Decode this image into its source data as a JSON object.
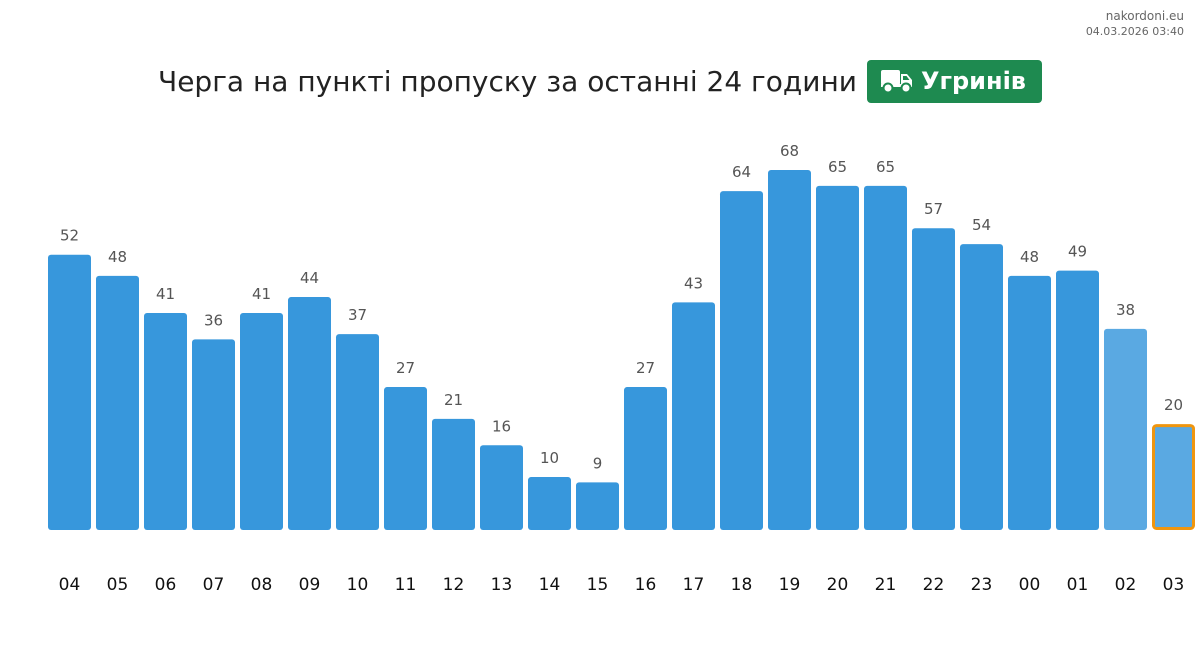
{
  "source": {
    "site": "nakordoni.eu",
    "timestamp": "04.03.2026 03:40"
  },
  "header": {
    "title": "Черга на пункті пропуску за останні 24 години",
    "checkpoint": "Угринів",
    "checkpoint_icon": "truck-icon"
  },
  "colors": {
    "bar": "#3797dc",
    "bar_recent": "#5aa9e2",
    "highlight_border": "#f0960f",
    "badge": "#1e8a50",
    "value_label": "#555555",
    "hour_label": "#111111"
  },
  "chart_data": {
    "type": "bar",
    "categories": [
      "04",
      "05",
      "06",
      "07",
      "08",
      "09",
      "10",
      "11",
      "12",
      "13",
      "14",
      "15",
      "16",
      "17",
      "18",
      "19",
      "20",
      "21",
      "22",
      "23",
      "00",
      "01",
      "02",
      "03"
    ],
    "values": [
      52,
      48,
      41,
      36,
      41,
      44,
      37,
      27,
      21,
      16,
      10,
      9,
      27,
      43,
      64,
      68,
      65,
      65,
      57,
      54,
      48,
      49,
      38,
      20
    ],
    "recent_categories": [
      "02",
      "03"
    ],
    "highlighted_category": "03",
    "ylim": [
      0,
      68
    ],
    "grid": false,
    "legend": "none"
  }
}
